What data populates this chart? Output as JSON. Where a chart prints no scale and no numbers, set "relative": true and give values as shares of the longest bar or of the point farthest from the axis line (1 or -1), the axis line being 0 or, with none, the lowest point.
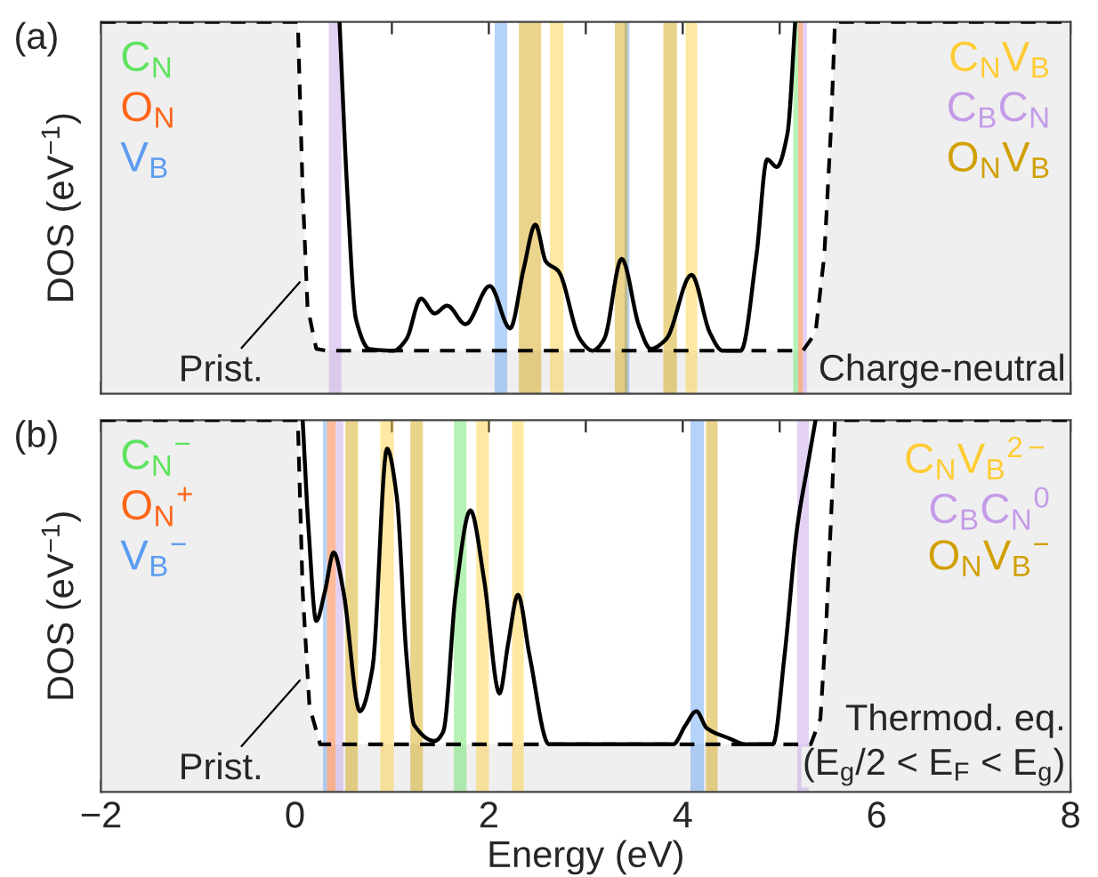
{
  "chart_data": [
    {
      "type": "line",
      "title": "(a)",
      "ylabel": "DOS (eV$^{−1}$)",
      "relative": true,
      "xlim": [
        -2,
        8
      ],
      "xticks": [
        -2,
        {
          "value": -1,
          "label": null
        },
        0,
        {
          "value": 1,
          "label": null
        },
        2,
        {
          "value": 3,
          "label": null
        },
        4,
        {
          "value": 5,
          "label": null
        },
        6,
        {
          "value": 7,
          "label": null
        },
        8
      ],
      "tick_labels": false,
      "grid": false,
      "legend": false,
      "series": [
        {
          "type": "area",
          "color": "#efefef",
          "line_style": "dashed",
          "x": [
            -2,
            0.03,
            0.08,
            0.13,
            0.22,
            0.32,
            5.24,
            5.37,
            5.46,
            5.53,
            5.57,
            8
          ],
          "values": [
            1,
            1,
            0.545,
            0.234,
            0.121,
            0.116,
            0.116,
            0.164,
            0.372,
            0.718,
            1,
            1
          ]
        },
        {
          "type": "line",
          "color": "#000000",
          "line_style": "solid",
          "x": [
            0.46,
            0.54,
            0.63,
            0.77,
            1.02,
            1.15,
            1.3,
            1.44,
            1.57,
            1.76,
            2.01,
            2.22,
            2.36,
            2.48,
            2.59,
            2.72,
            2.94,
            3.07,
            3.19,
            3.37,
            3.55,
            3.67,
            3.83,
            4.09,
            4.28,
            4.41,
            4.6,
            4.76,
            4.87,
            4.97,
            5.08,
            5.16
          ],
          "values": [
            1,
            0.545,
            0.2,
            0.12,
            0.116,
            0.147,
            0.256,
            0.216,
            0.237,
            0.187,
            0.29,
            0.176,
            0.337,
            0.455,
            0.355,
            0.329,
            0.147,
            0.116,
            0.147,
            0.363,
            0.182,
            0.121,
            0.147,
            0.32,
            0.164,
            0.116,
            0.116,
            0.372,
            0.63,
            0.61,
            0.7,
            1
          ]
        }
      ],
      "bands": [
        {
          "axis": "x",
          "from": 5.14,
          "to": 5.19,
          "color": "#5ee35e",
          "label": "C$_{N}$"
        },
        {
          "axis": "x",
          "from": 5.19,
          "to": 5.24,
          "color": "#ff6619",
          "label": "O$_{N}$"
        },
        {
          "axis": "x",
          "from": 2.06,
          "to": 2.19,
          "color": "#5c9cf0",
          "label": "V$_{B}$"
        },
        {
          "axis": "x",
          "from": 2.63,
          "to": 2.77,
          "color": "#ffcc33",
          "label": "C$_{N}$V$_{B}$"
        },
        {
          "axis": "x",
          "from": 0.35,
          "to": 0.48,
          "color": "#c49be8",
          "label": "C$_{B}$C$_{N}$"
        },
        {
          "axis": "x",
          "from": 2.31,
          "to": 2.54,
          "color": "#d1a000",
          "label": "O$_{N}$V$_{B}$"
        },
        {
          "axis": "x",
          "from": 3.4,
          "to": 3.45,
          "color": "#5c9cf0"
        },
        {
          "axis": "x",
          "from": 3.3,
          "to": 3.43,
          "color": "#d1a000"
        },
        {
          "axis": "x",
          "from": 3.8,
          "to": 3.94,
          "color": "#d1a000"
        },
        {
          "axis": "x",
          "from": 4.03,
          "to": 4.15,
          "color": "#ffcc33"
        },
        {
          "axis": "x",
          "from": 5.24,
          "to": 5.28,
          "color": "#c49be8"
        }
      ],
      "annotations": [
        {
          "text": "Prist.",
          "x": 0.05,
          "y": 0.3
        },
        "Charge-neutral"
      ]
    },
    {
      "type": "line",
      "title": "(b)",
      "xlabel": "Energy (eV)",
      "ylabel": "DOS (eV$^{−1}$)",
      "relative": true,
      "xlim": [
        -2,
        8
      ],
      "xticks": [
        {
          "value": -2,
          "label": "−2"
        },
        {
          "value": -1,
          "label": null
        },
        0,
        {
          "value": 1,
          "label": null
        },
        2,
        {
          "value": 3,
          "label": null
        },
        4,
        {
          "value": 5,
          "label": null
        },
        6,
        {
          "value": 7,
          "label": null
        },
        8
      ],
      "tick_labels": "x",
      "grid": false,
      "legend": false,
      "series": [
        {
          "type": "area",
          "color": "#efefef",
          "line_style": "dashed",
          "x": [
            -2,
            0.03,
            0.08,
            0.15,
            0.26,
            5.32,
            5.42,
            5.48,
            5.54,
            5.57,
            8
          ],
          "values": [
            1,
            1,
            0.538,
            0.23,
            0.128,
            0.128,
            0.197,
            0.453,
            0.795,
            1,
            1
          ]
        },
        {
          "type": "line",
          "color": "#000000",
          "line_style": "solid",
          "x": [
            0.08,
            0.14,
            0.22,
            0.31,
            0.4,
            0.5,
            0.67,
            0.8,
            0.95,
            1.05,
            1.15,
            1.23,
            1.44,
            1.53,
            1.66,
            1.81,
            1.95,
            2.11,
            2.2,
            2.3,
            2.42,
            2.62,
            3.9,
            4.03,
            4.14,
            4.25,
            4.47,
            4.66,
            4.93,
            5.05,
            5.18,
            5.29,
            5.37
          ],
          "values": [
            1,
            0.71,
            0.46,
            0.54,
            0.644,
            0.54,
            0.217,
            0.333,
            0.923,
            0.795,
            0.367,
            0.18,
            0.137,
            0.162,
            0.538,
            0.757,
            0.573,
            0.265,
            0.4,
            0.53,
            0.367,
            0.128,
            0.128,
            0.18,
            0.217,
            0.171,
            0.145,
            0.128,
            0.128,
            0.367,
            0.71,
            0.88,
            1
          ]
        }
      ],
      "bands": [
        {
          "axis": "x",
          "from": 1.64,
          "to": 1.77,
          "color": "#5ee35e",
          "label": "C$_{N}$$^{−}$"
        },
        {
          "axis": "x",
          "from": 0.33,
          "to": 0.42,
          "color": "#ff6619",
          "label": "O$_{N}$$^{+}$"
        },
        {
          "axis": "x",
          "from": 0.29,
          "to": 0.33,
          "color": "#5c9cf0",
          "label": "V$_{B}$$^{−}$"
        },
        {
          "axis": "x",
          "from": 0.88,
          "to": 1.02,
          "color": "#ffcc33",
          "label": "C$_{N}$V$_{B}$$^{2−}$"
        },
        {
          "axis": "x",
          "from": 5.18,
          "to": 5.3,
          "color": "#c49be8",
          "label": "C$_{B}$C$_{N}$$^{0}$"
        },
        {
          "axis": "x",
          "from": 0.52,
          "to": 0.65,
          "color": "#d1a000",
          "label": "O$_{N}$V$_{B}$$^{−}$"
        },
        {
          "axis": "x",
          "from": 0.42,
          "to": 0.5,
          "color": "#c49be8"
        },
        {
          "axis": "x",
          "from": 1.19,
          "to": 1.32,
          "color": "#d1a000"
        },
        {
          "axis": "x",
          "from": 1.87,
          "to": 2.0,
          "color": "#ffcc33"
        },
        {
          "axis": "x",
          "from": 2.24,
          "to": 2.36,
          "color": "#ffcc33"
        },
        {
          "axis": "x",
          "from": 4.08,
          "to": 4.22,
          "color": "#5c9cf0"
        },
        {
          "axis": "x",
          "from": 4.24,
          "to": 4.36,
          "color": "#d1a000"
        }
      ],
      "annotations": [
        {
          "text": "Prist.",
          "x": 0.05,
          "y": 0.3
        },
        "Thermod. eq.",
        "(E$_{g}$/2 < E$_{F}$ < E$_{g}$)"
      ]
    }
  ]
}
